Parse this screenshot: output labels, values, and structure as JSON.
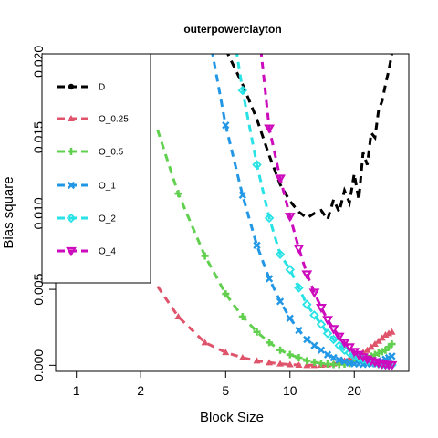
{
  "chart_data": {
    "type": "line",
    "title": "outerpowerclayton",
    "xlabel": "Block Size",
    "ylabel": "Bias square",
    "x_scale": "log",
    "xlim": [
      0.8,
      36
    ],
    "ylim": [
      -0.0004,
      0.0205
    ],
    "x_ticks": [
      1,
      2,
      5,
      10,
      20
    ],
    "x_tick_labels": [
      "1",
      "2",
      "5",
      "10",
      "20"
    ],
    "y_ticks": [
      0,
      0.005,
      0.01,
      0.015,
      0.02
    ],
    "y_tick_labels": [
      "0.000",
      "0.005",
      "0.010",
      "0.015",
      "0.020"
    ],
    "legend_position": "top-left",
    "grid": false,
    "series": [
      {
        "name": "D",
        "color": "#000000",
        "marker": "circle",
        "x": [
          5,
          6,
          7,
          8,
          9,
          10,
          11,
          12,
          13,
          14,
          15,
          16,
          17,
          18,
          19,
          20,
          21,
          22,
          23,
          24,
          25,
          26,
          27,
          28,
          29,
          30
        ],
        "y": [
          0.0208,
          0.0185,
          0.0162,
          0.0138,
          0.0119,
          0.0108,
          0.0101,
          0.0097,
          0.01,
          0.0102,
          0.0096,
          0.0109,
          0.0101,
          0.0115,
          0.0107,
          0.0126,
          0.0109,
          0.014,
          0.0132,
          0.0153,
          0.015,
          0.0168,
          0.0174,
          0.0185,
          0.0194,
          0.0205
        ]
      },
      {
        "name": "O_0.25",
        "color": "#DF536B",
        "marker": "triangle-up",
        "x": [
          2.4,
          3,
          4,
          5,
          6,
          7,
          8,
          9,
          10,
          11,
          12,
          13,
          14,
          15,
          16,
          17,
          18,
          19,
          20,
          21,
          22,
          23,
          24,
          25,
          26,
          27,
          28,
          29,
          30
        ],
        "y": [
          0.0052,
          0.0032,
          0.0015,
          0.00085,
          0.0005,
          0.0003,
          0.00018,
          0.0001,
          5e-05,
          2e-05,
          0.0,
          0.0,
          2e-05,
          5e-05,
          0.0001,
          0.00018,
          0.0003,
          0.00042,
          0.00055,
          0.0007,
          0.00085,
          0.001,
          0.0012,
          0.0014,
          0.0016,
          0.0018,
          0.002,
          0.0021,
          0.0022
        ]
      },
      {
        "name": "O_0.5",
        "color": "#61D04F",
        "marker": "plus",
        "x": [
          2.4,
          3,
          4,
          5,
          6,
          7,
          8,
          9,
          10,
          11,
          12,
          13,
          14,
          15,
          16,
          17,
          18,
          19,
          20,
          21,
          22,
          23,
          24,
          25,
          26,
          27,
          28,
          29,
          30
        ],
        "y": [
          0.0155,
          0.0113,
          0.0072,
          0.0047,
          0.0032,
          0.0022,
          0.0015,
          0.001,
          0.0007,
          0.0005,
          0.0003,
          0.0002,
          0.00012,
          8e-05,
          5e-05,
          5e-05,
          8e-05,
          0.00012,
          0.0002,
          0.0003,
          0.0004,
          0.0005,
          0.0006,
          0.0007,
          0.0008,
          0.0009,
          0.001,
          0.0012,
          0.0014
        ]
      },
      {
        "name": "O_1",
        "color": "#2297E6",
        "marker": "cross",
        "x": [
          4.3,
          5,
          6,
          7,
          8,
          9,
          10,
          11,
          12,
          13,
          14,
          15,
          16,
          17,
          18,
          19,
          20,
          21,
          22,
          23,
          24,
          25,
          26,
          27,
          28,
          29,
          30
        ],
        "y": [
          0.0208,
          0.0158,
          0.0112,
          0.0079,
          0.0057,
          0.0042,
          0.0031,
          0.0023,
          0.0017,
          0.0013,
          0.001,
          0.0007,
          0.0005,
          0.00035,
          0.00025,
          0.00015,
          0.0001,
          8e-05,
          6e-05,
          8e-05,
          0.0001,
          0.00015,
          0.0002,
          0.0003,
          0.0004,
          0.0005,
          0.0006
        ]
      },
      {
        "name": "O_2",
        "color": "#28E2E5",
        "marker": "diamond",
        "x": [
          5.6,
          6,
          7,
          8,
          9,
          10,
          11,
          12,
          13,
          14,
          15,
          16,
          17,
          18,
          19,
          20,
          21,
          22,
          23,
          24,
          25,
          26,
          27,
          28,
          29,
          30
        ],
        "y": [
          0.0208,
          0.0181,
          0.0132,
          0.0097,
          0.0073,
          0.0063,
          0.0051,
          0.004,
          0.0033,
          0.0027,
          0.0021,
          0.0017,
          0.0013,
          0.001,
          0.0008,
          0.0006,
          0.0005,
          0.0004,
          0.0003,
          0.00022,
          0.00015,
          0.0001,
          5e-05,
          3e-05,
          2e-05,
          2e-05
        ]
      },
      {
        "name": "O_4",
        "color": "#CD0BBC",
        "marker": "triangle-down",
        "x": [
          7.3,
          8,
          9,
          10,
          11,
          12,
          13,
          14,
          15,
          16,
          17,
          18,
          19,
          20,
          21,
          22,
          23,
          24,
          25,
          26,
          27,
          28,
          29,
          30
        ],
        "y": [
          0.0208,
          0.0156,
          0.0123,
          0.0098,
          0.0077,
          0.006,
          0.0048,
          0.0038,
          0.003,
          0.0024,
          0.0019,
          0.0015,
          0.0012,
          0.0009,
          0.0007,
          0.00055,
          0.0004,
          0.0003,
          0.00022,
          0.00015,
          0.0001,
          6e-05,
          3e-05,
          2e-05
        ]
      }
    ]
  }
}
